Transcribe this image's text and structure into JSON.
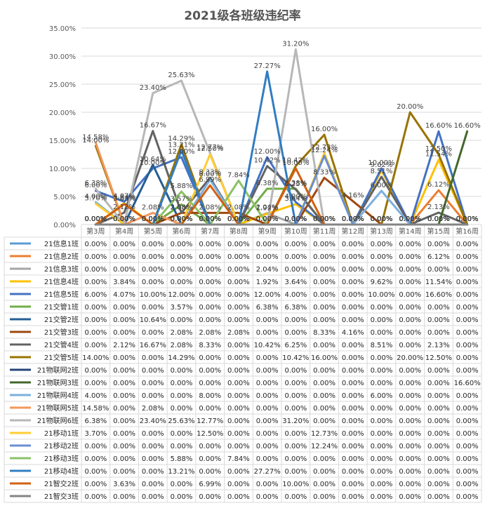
{
  "chart_data": {
    "type": "line",
    "title": "2021级各班级违纪率",
    "xlabel": "",
    "ylabel": "",
    "ylim": [
      0,
      35
    ],
    "yticks": [
      "0.00%",
      "5.00%",
      "10.00%",
      "15.00%",
      "20.00%",
      "25.00%",
      "30.00%",
      "35.00%"
    ],
    "grid": true,
    "legend": "data-table-bottom",
    "categories": [
      "第3周",
      "第4周",
      "第5周",
      "第6周",
      "第7周",
      "第8周",
      "第9周",
      "第10周",
      "第11周",
      "第12周",
      "第13周",
      "第14周",
      "第15周",
      "第16周"
    ],
    "series": [
      {
        "name": "21信息1班",
        "color": "#5B9BD5",
        "values": [
          0,
          0,
          0,
          0,
          0,
          0,
          0,
          0,
          0,
          0,
          0,
          0,
          0,
          0
        ]
      },
      {
        "name": "21信息2班",
        "color": "#ED7D31",
        "values": [
          0,
          0,
          0,
          0,
          0,
          0,
          0,
          0,
          0,
          0,
          0,
          0,
          6.12,
          0
        ]
      },
      {
        "name": "21信息3班",
        "color": "#A5A5A5",
        "values": [
          0,
          0,
          0,
          0,
          0,
          0,
          2.04,
          0,
          0,
          0,
          0,
          0,
          0,
          0
        ]
      },
      {
        "name": "21信息4班",
        "color": "#FFC000",
        "values": [
          0,
          3.84,
          0,
          0,
          0,
          0,
          1.92,
          3.64,
          0,
          0,
          9.62,
          0,
          11.54,
          0
        ]
      },
      {
        "name": "21信息5班",
        "color": "#4472C4",
        "values": [
          6.0,
          4.07,
          10.0,
          12.0,
          0,
          0,
          12.0,
          4.0,
          0,
          0,
          10.0,
          0,
          16.6,
          0
        ]
      },
      {
        "name": "21交管1班",
        "color": "#70AD47",
        "values": [
          0,
          0,
          0,
          3.57,
          0,
          0,
          6.38,
          6.38,
          0,
          0,
          0,
          0,
          0,
          0
        ]
      },
      {
        "name": "21交管2班",
        "color": "#255E91",
        "values": [
          0,
          0,
          10.64,
          0,
          0,
          0,
          0,
          0,
          0,
          0,
          0,
          0,
          0,
          0
        ]
      },
      {
        "name": "21交管3班",
        "color": "#9E480E",
        "values": [
          0,
          0,
          0,
          2.08,
          2.08,
          2.08,
          0,
          0,
          8.33,
          4.16,
          0,
          0,
          0,
          0
        ]
      },
      {
        "name": "21交管4班",
        "color": "#636363",
        "values": [
          0,
          2.12,
          16.67,
          2.08,
          8.33,
          0,
          10.42,
          6.25,
          0,
          0,
          8.51,
          0,
          2.13,
          0
        ]
      },
      {
        "name": "21交管5班",
        "color": "#997300",
        "values": [
          14.0,
          0,
          0,
          14.29,
          0,
          0,
          0,
          10.42,
          16.0,
          0,
          0,
          20.0,
          12.5,
          0
        ]
      },
      {
        "name": "21物联网2班",
        "color": "#264478",
        "values": [
          0,
          0,
          0,
          0,
          0,
          0,
          0,
          0,
          0,
          0,
          0,
          0,
          0,
          0
        ]
      },
      {
        "name": "21物联网3班",
        "color": "#43682B",
        "values": [
          0,
          0,
          0,
          0,
          0,
          0,
          0,
          0,
          0,
          0,
          0,
          0,
          0,
          16.6
        ]
      },
      {
        "name": "21物联网4班",
        "color": "#7CAFDD",
        "values": [
          4.0,
          0,
          0,
          0,
          8.0,
          0,
          0,
          0,
          0,
          0,
          6.0,
          0,
          0,
          0
        ]
      },
      {
        "name": "21物联网5班",
        "color": "#F1975A",
        "values": [
          14.58,
          0,
          2.08,
          0,
          0,
          0,
          0,
          0,
          0,
          0,
          0,
          0,
          0,
          0
        ]
      },
      {
        "name": "21物联网6班",
        "color": "#B7B7B7",
        "values": [
          6.38,
          0,
          23.4,
          25.63,
          12.77,
          0,
          0,
          31.2,
          0,
          0,
          0,
          0,
          0,
          0
        ]
      },
      {
        "name": "21移动1班",
        "color": "#FFCD33",
        "values": [
          3.7,
          0,
          0,
          0,
          12.5,
          0,
          0,
          0,
          12.73,
          0,
          0,
          0,
          0,
          0
        ]
      },
      {
        "name": "21移动2班",
        "color": "#698ED0",
        "values": [
          0,
          0,
          0,
          0,
          0,
          0,
          0,
          0,
          12.24,
          0,
          0,
          0,
          0,
          0
        ]
      },
      {
        "name": "21移动3班",
        "color": "#8CC168",
        "values": [
          0,
          0,
          0,
          5.88,
          0,
          7.84,
          0,
          0,
          0,
          0,
          0,
          0,
          0,
          0
        ]
      },
      {
        "name": "21移动4班",
        "color": "#327DC2",
        "values": [
          0,
          0,
          0,
          13.21,
          0,
          0,
          27.27,
          0,
          0,
          0,
          0,
          0,
          0,
          0
        ]
      },
      {
        "name": "21智交2班",
        "color": "#D26012",
        "values": [
          0,
          3.63,
          0,
          0,
          6.99,
          0,
          0,
          10.0,
          0,
          0,
          0,
          0,
          0,
          0
        ]
      },
      {
        "name": "21智交3班",
        "color": "#848484",
        "values": [
          0,
          0,
          0,
          0,
          0,
          0,
          0,
          0,
          0,
          0,
          0,
          0,
          0,
          0
        ]
      }
    ]
  }
}
